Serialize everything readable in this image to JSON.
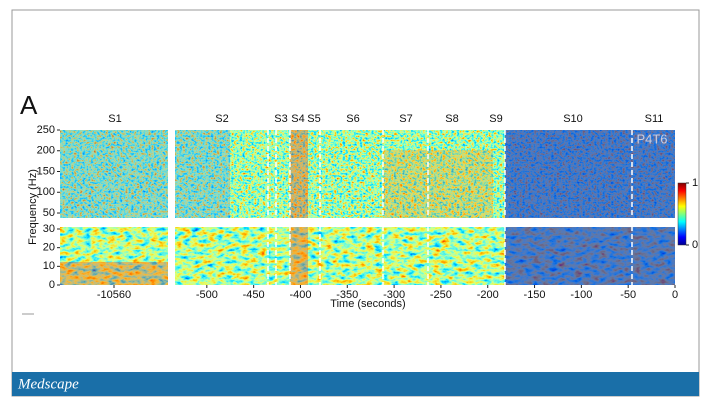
{
  "chart_data": {
    "type": "spectrogram",
    "panel_label": "A",
    "segments": [
      "S1",
      "S2",
      "S3",
      "S4",
      "S5",
      "S6",
      "S7",
      "S8",
      "S9",
      "S10",
      "S11"
    ],
    "annotation": "P4T6",
    "xlabel": "Time (seconds)",
    "ylabel": "Frequency (Hz)",
    "xlim": [
      [
        -10618,
        -10502
      ],
      [
        -534,
        0
      ]
    ],
    "xticks": [
      -10560,
      -500,
      -450,
      -400,
      -350,
      -300,
      -250,
      -200,
      -150,
      -100,
      -50,
      0
    ],
    "panels": [
      {
        "ylim": [
          38,
          250
        ],
        "yticks": [
          50,
          100,
          150,
          200,
          250
        ]
      },
      {
        "ylim": [
          0,
          30
        ],
        "yticks": [
          0,
          10,
          20,
          30
        ]
      }
    ],
    "clim": [
      0,
      1
    ],
    "cticks": [
      0,
      1
    ]
  },
  "footer": {
    "brand": "Medscape"
  }
}
